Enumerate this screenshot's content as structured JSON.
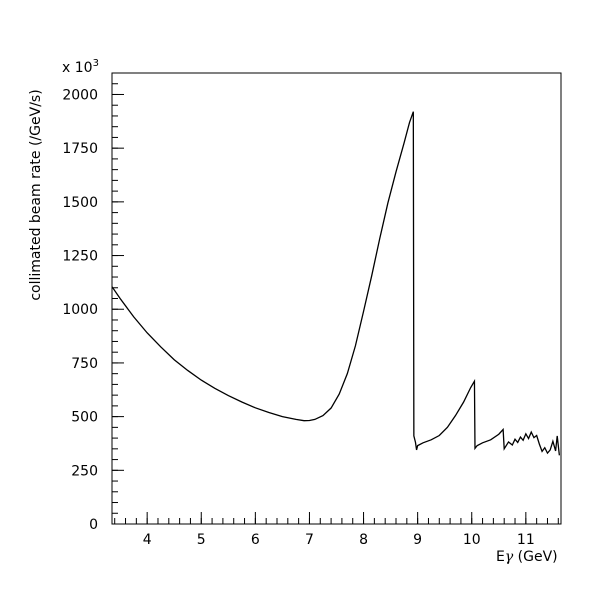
{
  "chart_data": {
    "type": "line",
    "xlabel_main": "E",
    "xlabel_sym": "γ",
    "xlabel_unit": " (GeV)",
    "ylabel": "collimated beam rate (/GeV/s)",
    "y_multiplier_base": "x 10",
    "y_multiplier_exp": "3",
    "xlim": [
      3.35,
      11.65
    ],
    "ylim": [
      0,
      2100
    ],
    "x_ticks": [
      4,
      5,
      6,
      7,
      8,
      9,
      10,
      11
    ],
    "y_ticks": [
      0,
      250,
      500,
      750,
      1000,
      1250,
      1500,
      1750,
      2000
    ],
    "x_minor_step": 0.2,
    "y_minor_step": 50,
    "grid": false,
    "series": [
      {
        "color": "#000000",
        "points": [
          [
            3.35,
            1105
          ],
          [
            3.5,
            1050
          ],
          [
            3.75,
            965
          ],
          [
            4.0,
            890
          ],
          [
            4.25,
            825
          ],
          [
            4.5,
            765
          ],
          [
            4.75,
            715
          ],
          [
            5.0,
            670
          ],
          [
            5.25,
            632
          ],
          [
            5.5,
            598
          ],
          [
            5.75,
            568
          ],
          [
            6.0,
            541
          ],
          [
            6.25,
            519
          ],
          [
            6.5,
            500
          ],
          [
            6.75,
            487
          ],
          [
            6.9,
            481
          ],
          [
            7.0,
            482
          ],
          [
            7.1,
            487
          ],
          [
            7.25,
            505
          ],
          [
            7.4,
            540
          ],
          [
            7.55,
            605
          ],
          [
            7.7,
            700
          ],
          [
            7.85,
            830
          ],
          [
            8.0,
            990
          ],
          [
            8.15,
            1155
          ],
          [
            8.3,
            1330
          ],
          [
            8.45,
            1495
          ],
          [
            8.6,
            1640
          ],
          [
            8.75,
            1775
          ],
          [
            8.85,
            1870
          ],
          [
            8.92,
            1920
          ],
          [
            8.93,
            410
          ],
          [
            8.96,
            380
          ],
          [
            8.98,
            345
          ],
          [
            9.0,
            365
          ],
          [
            9.1,
            378
          ],
          [
            9.25,
            392
          ],
          [
            9.4,
            412
          ],
          [
            9.55,
            450
          ],
          [
            9.7,
            505
          ],
          [
            9.85,
            568
          ],
          [
            9.98,
            635
          ],
          [
            10.05,
            665
          ],
          [
            10.06,
            352
          ],
          [
            10.1,
            365
          ],
          [
            10.2,
            378
          ],
          [
            10.35,
            392
          ],
          [
            10.5,
            418
          ],
          [
            10.58,
            440
          ],
          [
            10.6,
            350
          ],
          [
            10.68,
            382
          ],
          [
            10.75,
            368
          ],
          [
            10.8,
            395
          ],
          [
            10.85,
            380
          ],
          [
            10.9,
            405
          ],
          [
            10.95,
            390
          ],
          [
            11.0,
            420
          ],
          [
            11.05,
            398
          ],
          [
            11.1,
            428
          ],
          [
            11.15,
            402
          ],
          [
            11.2,
            412
          ],
          [
            11.25,
            372
          ],
          [
            11.3,
            338
          ],
          [
            11.35,
            355
          ],
          [
            11.4,
            330
          ],
          [
            11.45,
            345
          ],
          [
            11.5,
            385
          ],
          [
            11.55,
            340
          ],
          [
            11.58,
            410
          ],
          [
            11.62,
            320
          ]
        ]
      }
    ]
  }
}
